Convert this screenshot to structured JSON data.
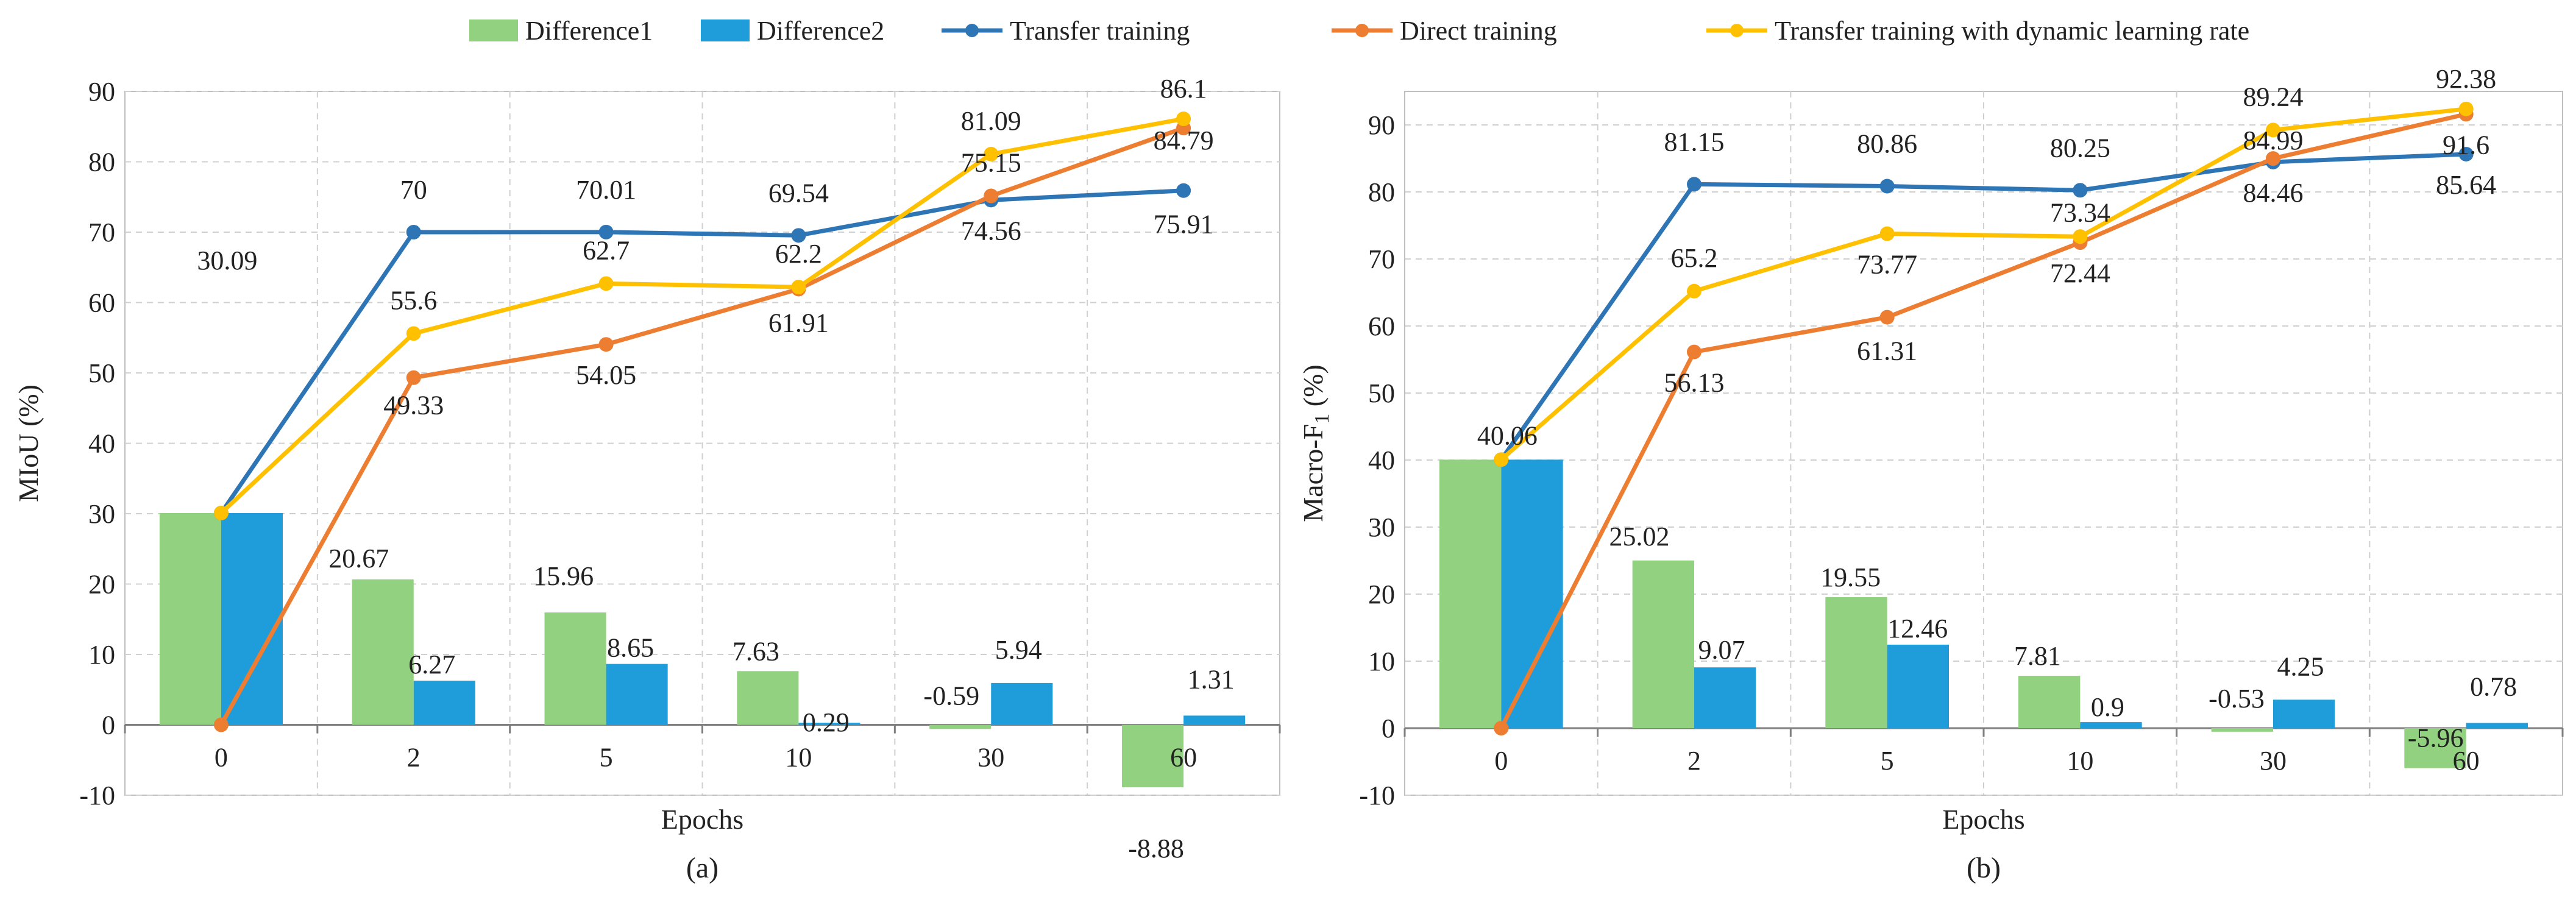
{
  "legend": {
    "items": [
      {
        "label": "Difference1",
        "kind": "bar",
        "color": "#92d17f"
      },
      {
        "label": "Difference2",
        "kind": "bar",
        "color": "#1f9ddb"
      },
      {
        "label": "Transfer training",
        "kind": "line",
        "color": "#2e75b6"
      },
      {
        "label": "Direct training",
        "kind": "line",
        "color": "#ed7d31"
      },
      {
        "label": "Transfer training with dynamic learning rate",
        "kind": "line",
        "color": "#ffc000"
      }
    ]
  },
  "chart_data": [
    {
      "type": "bar+line",
      "panel_label": "(a)",
      "xlabel": "Epochs",
      "ylabel": "MIoU (%)",
      "ylim": [
        -10,
        90
      ],
      "ytick_step": 10,
      "grid": true,
      "legend_position": "top",
      "categories": [
        "0",
        "2",
        "5",
        "10",
        "30",
        "60"
      ],
      "bar_series": [
        {
          "name": "Difference1",
          "color": "#92d17f",
          "values": [
            30.09,
            20.67,
            15.96,
            7.63,
            -0.59,
            -8.88
          ],
          "labels": [
            "30.09",
            "20.67",
            "15.96",
            "7.63",
            "-0.59",
            "-8.88"
          ]
        },
        {
          "name": "Difference2",
          "color": "#1f9ddb",
          "values": [
            30.09,
            6.27,
            8.65,
            0.29,
            5.94,
            1.31
          ],
          "labels": [
            "",
            "6.27",
            "8.65",
            "0.29",
            "5.94",
            "1.31"
          ]
        }
      ],
      "line_series": [
        {
          "name": "Transfer training",
          "color": "#2e75b6",
          "values": [
            30.09,
            70,
            70.01,
            69.54,
            74.56,
            75.91
          ],
          "labels": [
            "",
            "70",
            "70.01",
            "69.54",
            "74.56",
            "75.91"
          ]
        },
        {
          "name": "Direct training",
          "color": "#ed7d31",
          "values": [
            0,
            49.33,
            54.05,
            61.91,
            75.15,
            84.79
          ],
          "labels": [
            "",
            "49.33",
            "54.05",
            "61.91",
            "75.15",
            "84.79"
          ]
        },
        {
          "name": "Transfer training with dynamic learning rate",
          "color": "#ffc000",
          "values": [
            30.09,
            55.6,
            62.7,
            62.2,
            81.09,
            86.1
          ],
          "labels": [
            "",
            "55.6",
            "62.7",
            "62.2",
            "81.09",
            "86.1"
          ]
        }
      ]
    },
    {
      "type": "bar+line",
      "panel_label": "(b)",
      "xlabel": "Epochs",
      "ylabel": "Macro-F",
      "ylabel_subscript": "1",
      "ylabel_suffix": " (%)",
      "ylim": [
        -10,
        95
      ],
      "ytick_step": 10,
      "ytick_max": 90,
      "grid": true,
      "legend_position": "top",
      "categories": [
        "0",
        "2",
        "5",
        "10",
        "30",
        "60"
      ],
      "bar_series": [
        {
          "name": "Difference1",
          "color": "#92d17f",
          "values": [
            40.06,
            25.02,
            19.55,
            7.81,
            -0.53,
            -5.96
          ],
          "labels": [
            "40.06",
            "25.02",
            "19.55",
            "7.81",
            "-0.53",
            "-5.96"
          ]
        },
        {
          "name": "Difference2",
          "color": "#1f9ddb",
          "values": [
            40.06,
            9.07,
            12.46,
            0.9,
            4.25,
            0.78
          ],
          "labels": [
            "",
            "9.07",
            "12.46",
            "0.9",
            "4.25",
            "0.78"
          ]
        }
      ],
      "line_series": [
        {
          "name": "Transfer training",
          "color": "#2e75b6",
          "values": [
            40.06,
            81.15,
            80.86,
            80.25,
            84.46,
            85.64
          ],
          "labels": [
            "",
            "81.15",
            "80.86",
            "80.25",
            "84.46",
            "85.64"
          ]
        },
        {
          "name": "Direct training",
          "color": "#ed7d31",
          "values": [
            0,
            56.13,
            61.31,
            72.44,
            84.99,
            91.6
          ],
          "labels": [
            "",
            "56.13",
            "61.31",
            "72.44",
            "84.99",
            "91.6"
          ]
        },
        {
          "name": "Transfer training with dynamic learning rate",
          "color": "#ffc000",
          "values": [
            40.06,
            65.2,
            73.77,
            73.34,
            89.24,
            92.38
          ],
          "labels": [
            "",
            "65.2",
            "73.77",
            "73.34",
            "89.24",
            "92.38"
          ]
        }
      ]
    }
  ]
}
